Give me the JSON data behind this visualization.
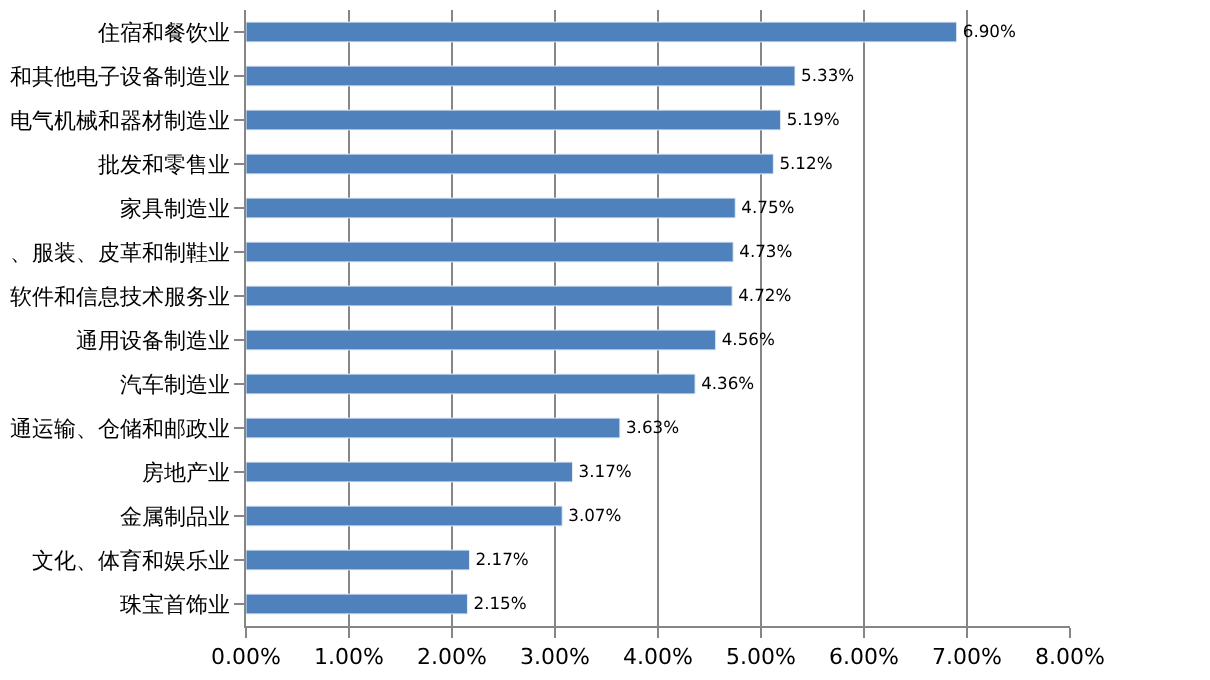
{
  "chart_data": {
    "type": "bar",
    "orientation": "horizontal",
    "categories": [
      "住宿和餐饮业",
      "和其他电子设备制造业",
      "电气机械和器材制造业",
      "批发和零售业",
      "家具制造业",
      "、服装、皮革和制鞋业",
      "软件和信息技术服务业",
      "通用设备制造业",
      "汽车制造业",
      "通运输、仓储和邮政业",
      "房地产业",
      "金属制品业",
      "文化、体育和娱乐业",
      "珠宝首饰业"
    ],
    "values": [
      6.9,
      5.33,
      5.19,
      5.12,
      4.75,
      4.73,
      4.72,
      4.56,
      4.36,
      3.63,
      3.17,
      3.07,
      2.17,
      2.15
    ],
    "value_labels": [
      "6.90%",
      "5.33%",
      "5.19%",
      "5.12%",
      "4.75%",
      "4.73%",
      "4.72%",
      "4.56%",
      "4.36%",
      "3.63%",
      "3.17%",
      "3.07%",
      "2.17%",
      "2.15%"
    ],
    "color": "#4f81bd",
    "xlim": [
      0,
      8
    ],
    "xticks": [
      {
        "value": 0,
        "label": "0.00%"
      },
      {
        "value": 1,
        "label": "1.00%"
      },
      {
        "value": 2,
        "label": "2.00%"
      },
      {
        "value": 3,
        "label": "3.00%"
      },
      {
        "value": 4,
        "label": "4.00%"
      },
      {
        "value": 5,
        "label": "5.00%"
      },
      {
        "value": 6,
        "label": "6.00%"
      },
      {
        "value": 7,
        "label": "7.00%"
      },
      {
        "value": 8,
        "label": "8.00%"
      }
    ],
    "grid": "x",
    "legend": false
  }
}
